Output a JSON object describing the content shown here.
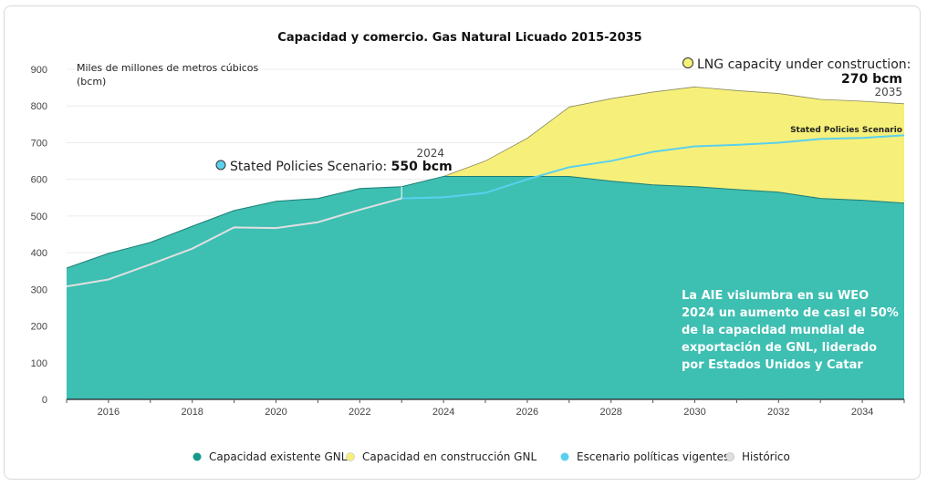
{
  "chart_data": {
    "type": "area",
    "title": "Capacidad y comercio. Gas Natural Licuado 2015-2035",
    "unit_label": [
      "Miles de millones de metros cúbicos",
      "(bcm)"
    ],
    "xlim": [
      2015,
      2035
    ],
    "ylim": [
      0,
      900
    ],
    "yticks": [
      0,
      100,
      200,
      300,
      400,
      500,
      600,
      700,
      800,
      900
    ],
    "xticks": [
      2016,
      2018,
      2020,
      2022,
      2024,
      2026,
      2028,
      2030,
      2032,
      2034
    ],
    "x": [
      2015,
      2016,
      2017,
      2018,
      2019,
      2020,
      2021,
      2022,
      2023,
      2024,
      2025,
      2026,
      2027,
      2028,
      2029,
      2030,
      2031,
      2032,
      2033,
      2034,
      2035
    ],
    "series": [
      {
        "name": "Capacidad existente GNL",
        "color": "#3dbfb2",
        "values": [
          358,
          398,
          428,
          472,
          515,
          540,
          548,
          575,
          580,
          608,
          608,
          608,
          608,
          595,
          585,
          580,
          572,
          565,
          548,
          543,
          535
        ]
      },
      {
        "name": "Capacidad en construcción GNL",
        "color": "#f6f07a",
        "values": [
          null,
          null,
          null,
          null,
          null,
          null,
          null,
          null,
          null,
          608,
          650,
          712,
          797,
          820,
          838,
          852,
          842,
          834,
          818,
          813,
          806
        ]
      },
      {
        "name": "Escenario políticas vigentes",
        "color": "#5ad0ee",
        "values": [
          null,
          null,
          null,
          null,
          null,
          null,
          null,
          null,
          548,
          551,
          563,
          600,
          633,
          650,
          675,
          690,
          694,
          700,
          710,
          713,
          720
        ]
      },
      {
        "name": "Histórico",
        "color": "#e0e0e0",
        "values": [
          308,
          327,
          368,
          411,
          469,
          467,
          483,
          517,
          548,
          null,
          null,
          null,
          null,
          null,
          null,
          null,
          null,
          null,
          null,
          null,
          null
        ]
      }
    ],
    "annotations": {
      "stated_year": "2024",
      "stated_label": "Stated Policies Scenario:",
      "stated_value": "550 bcm",
      "lng_label": "LNG capacity under construction:",
      "lng_value": "270 bcm",
      "lng_year": "2035",
      "scenario_tag": "Stated Policies Scenario",
      "callout_lines": [
        "La AIE vislumbra en su WEO",
        "2024 un aumento de casi el 50%",
        "de la capacidad mundial de",
        "exportación de GNL, liderado",
        "por Estados Unidos y Catar"
      ]
    },
    "legend": {
      "placement": "bottom",
      "items": [
        {
          "label": "Capacidad existente GNL",
          "color": "#14998a"
        },
        {
          "label": "Capacidad en construcción GNL",
          "color": "#f6f07a"
        },
        {
          "label": "Escenario políticas vigentes",
          "color": "#5ad0ee"
        },
        {
          "label": "Histórico",
          "color": "#e0e0e0"
        }
      ]
    },
    "grid": true
  }
}
